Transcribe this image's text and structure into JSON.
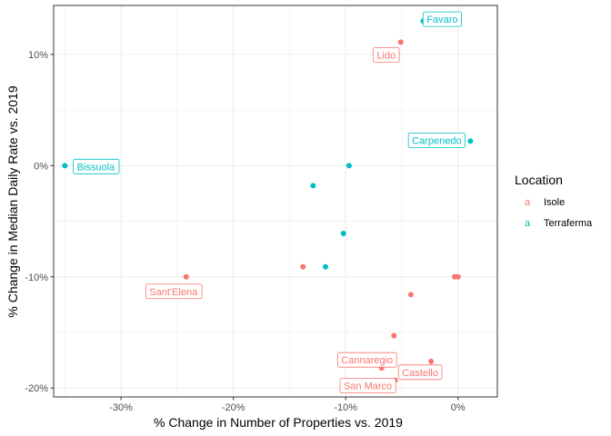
{
  "chart_data": {
    "type": "scatter",
    "title": "",
    "xlabel": "% Change in Number of Properties vs. 2019",
    "ylabel": "% Change in Median Daily Rate vs. 2019",
    "xlim": [
      -36,
      3.5
    ],
    "ylim": [
      -20.8,
      14.4
    ],
    "x_ticks": [
      -30,
      -20,
      -10,
      0
    ],
    "x_tick_labels": [
      "-30%",
      "-20%",
      "-10%",
      "0%"
    ],
    "y_ticks": [
      -20,
      -10,
      0,
      10
    ],
    "y_tick_labels": [
      "-20%",
      "-10%",
      "0%",
      "10%"
    ],
    "grid": true,
    "legend": {
      "title": "Location",
      "position": "right",
      "key_glyph": "a",
      "entries": [
        {
          "name": "Isole",
          "color": "#F8766D"
        },
        {
          "name": "Terraferma",
          "color": "#00BFC4"
        }
      ]
    },
    "series": [
      {
        "name": "Isole",
        "color": "#F8766D",
        "points": [
          {
            "x": -5.1,
            "y": 11.1,
            "label": "Lido"
          },
          {
            "x": -24.2,
            "y": -10.0,
            "label": "Sant'Elena"
          },
          {
            "x": -13.8,
            "y": -9.1,
            "label": ""
          },
          {
            "x": -0.3,
            "y": -10.0,
            "label": ""
          },
          {
            "x": 0.0,
            "y": -10.0,
            "label": ""
          },
          {
            "x": -4.2,
            "y": -11.6,
            "label": ""
          },
          {
            "x": -5.7,
            "y": -15.3,
            "label": ""
          },
          {
            "x": -2.4,
            "y": -17.6,
            "label": "Castello"
          },
          {
            "x": -6.8,
            "y": -18.2,
            "label": "Cannaregio"
          },
          {
            "x": -5.6,
            "y": -19.3,
            "label": "San Marco"
          }
        ]
      },
      {
        "name": "Terraferma",
        "color": "#00BFC4",
        "points": [
          {
            "x": -3.1,
            "y": 13.0,
            "label": "Favaro"
          },
          {
            "x": -35.0,
            "y": 0.0,
            "label": "Bissuola"
          },
          {
            "x": 1.1,
            "y": 2.2,
            "label": "Carpenedo"
          },
          {
            "x": -9.7,
            "y": 0.0,
            "label": ""
          },
          {
            "x": -12.9,
            "y": -1.8,
            "label": ""
          },
          {
            "x": -10.2,
            "y": -6.1,
            "label": ""
          },
          {
            "x": -11.8,
            "y": -9.1,
            "label": ""
          }
        ]
      }
    ]
  }
}
